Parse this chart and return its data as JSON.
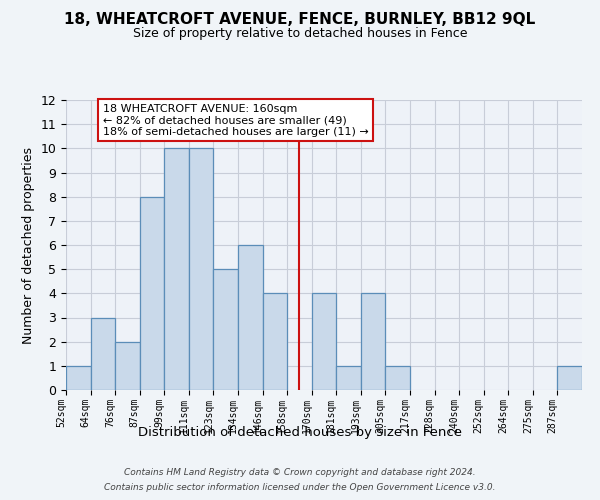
{
  "title": "18, WHEATCROFT AVENUE, FENCE, BURNLEY, BB12 9QL",
  "subtitle": "Size of property relative to detached houses in Fence",
  "xlabel": "Distribution of detached houses by size in Fence",
  "ylabel": "Number of detached properties",
  "bin_labels": [
    "52sqm",
    "64sqm",
    "76sqm",
    "87sqm",
    "99sqm",
    "111sqm",
    "123sqm",
    "134sqm",
    "146sqm",
    "158sqm",
    "170sqm",
    "181sqm",
    "193sqm",
    "205sqm",
    "217sqm",
    "228sqm",
    "240sqm",
    "252sqm",
    "264sqm",
    "275sqm",
    "287sqm"
  ],
  "bar_heights": [
    1,
    3,
    2,
    8,
    10,
    10,
    5,
    6,
    4,
    0,
    4,
    1,
    4,
    1,
    0,
    0,
    0,
    0,
    0,
    0,
    1
  ],
  "bar_color": "#c9d9ea",
  "bar_edge_color": "#5b8db8",
  "vline_x_index": 9.5,
  "vline_color": "#cc1111",
  "ylim": [
    0,
    12
  ],
  "yticks": [
    0,
    1,
    2,
    3,
    4,
    5,
    6,
    7,
    8,
    9,
    10,
    11,
    12
  ],
  "annotation_title": "18 WHEATCROFT AVENUE: 160sqm",
  "annotation_line1": "← 82% of detached houses are smaller (49)",
  "annotation_line2": "18% of semi-detached houses are larger (11) →",
  "annotation_box_color": "#ffffff",
  "annotation_box_edge": "#cc1111",
  "footer1": "Contains HM Land Registry data © Crown copyright and database right 2024.",
  "footer2": "Contains public sector information licensed under the Open Government Licence v3.0.",
  "background_color": "#f0f4f8",
  "plot_bg_color": "#eef2f8",
  "grid_color": "#c8cdd8"
}
